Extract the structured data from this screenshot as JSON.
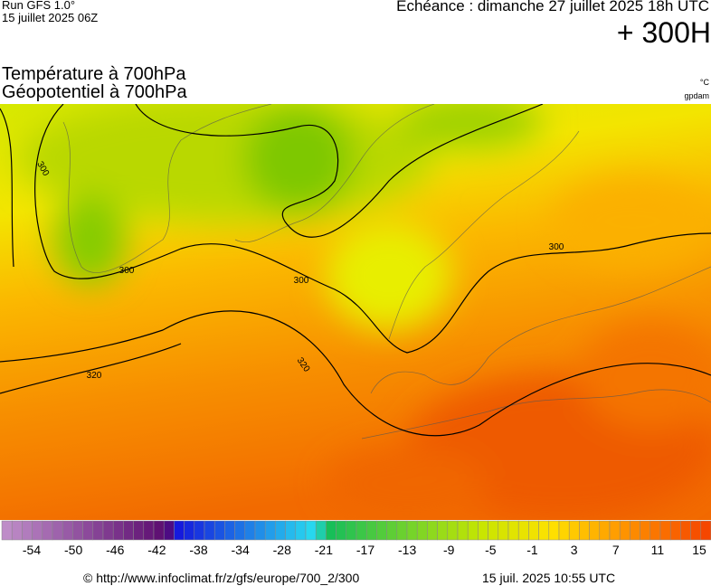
{
  "header": {
    "run": "Run GFS 1.0°",
    "run_date": "15 juillet 2025 06Z",
    "valid": "Echéance : dimanche 27 juillet 2025 18h UTC",
    "lead": "+ 300H"
  },
  "titles": {
    "temperature": "Température à 700hPa",
    "geopotential": "Géopotentiel à 700hPa",
    "temp_unit": "°C",
    "geo_unit": "gpdam"
  },
  "contour_labels": [
    "300",
    "300",
    "300",
    "300",
    "320",
    "320"
  ],
  "legend": {
    "ticks": [
      "-54",
      "-50",
      "-46",
      "-42",
      "-38",
      "-34",
      "-28",
      "-21",
      "-17",
      "-13",
      "-9",
      "-5",
      "-1",
      "3",
      "7",
      "11",
      "15"
    ]
  },
  "footer": {
    "source": "© http://www.infoclimat.fr/z/gfs/europe/700_2/300",
    "generated": "15 juil. 2025 10:55 UTC"
  }
}
